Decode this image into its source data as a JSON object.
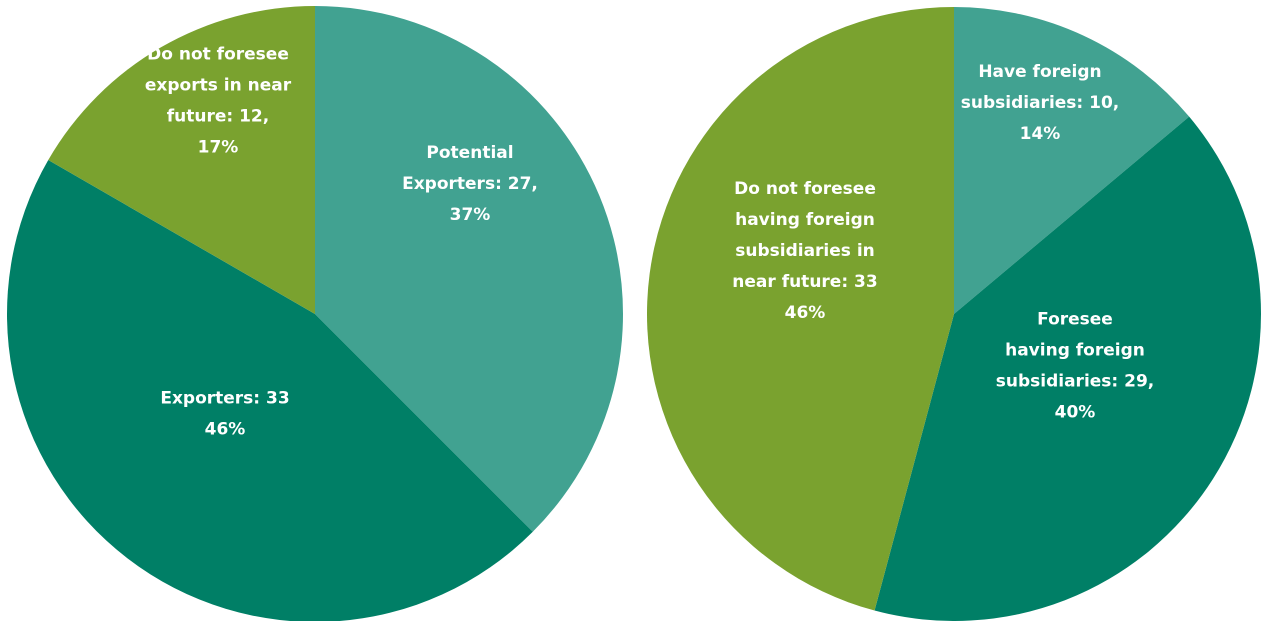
{
  "colors": {
    "teal_light": "#41a291",
    "teal_dark": "#007f66",
    "olive_green": "#7aa22f",
    "label_text": "#ffffff"
  },
  "chart_data": [
    {
      "type": "pie",
      "slices": [
        {
          "lines": [
            "Potential",
            "Exporters: 27,",
            "37%"
          ],
          "value": 27,
          "percent": 37,
          "color": "#41a291"
        },
        {
          "lines": [
            "Exporters: 33",
            "46%"
          ],
          "value": 33,
          "percent": 46,
          "color": "#007f66"
        },
        {
          "lines": [
            "Do not foresee",
            "exports in near",
            "future: 12,",
            "17%"
          ],
          "value": 12,
          "percent": 17,
          "color": "#7aa22f"
        }
      ]
    },
    {
      "type": "pie",
      "slices": [
        {
          "lines": [
            "Have foreign",
            "subsidiaries: 10,",
            "14%"
          ],
          "value": 10,
          "percent": 14,
          "color": "#41a291"
        },
        {
          "lines": [
            "Foresee",
            "having foreign",
            "subsidiaries: 29,",
            "40%"
          ],
          "value": 29,
          "percent": 40,
          "color": "#007f66"
        },
        {
          "lines": [
            "Do not foresee",
            "having foreign",
            "subsidiaries in",
            "near future: 33",
            "46%"
          ],
          "value": 33,
          "percent": 46,
          "color": "#7aa22f"
        }
      ]
    }
  ]
}
